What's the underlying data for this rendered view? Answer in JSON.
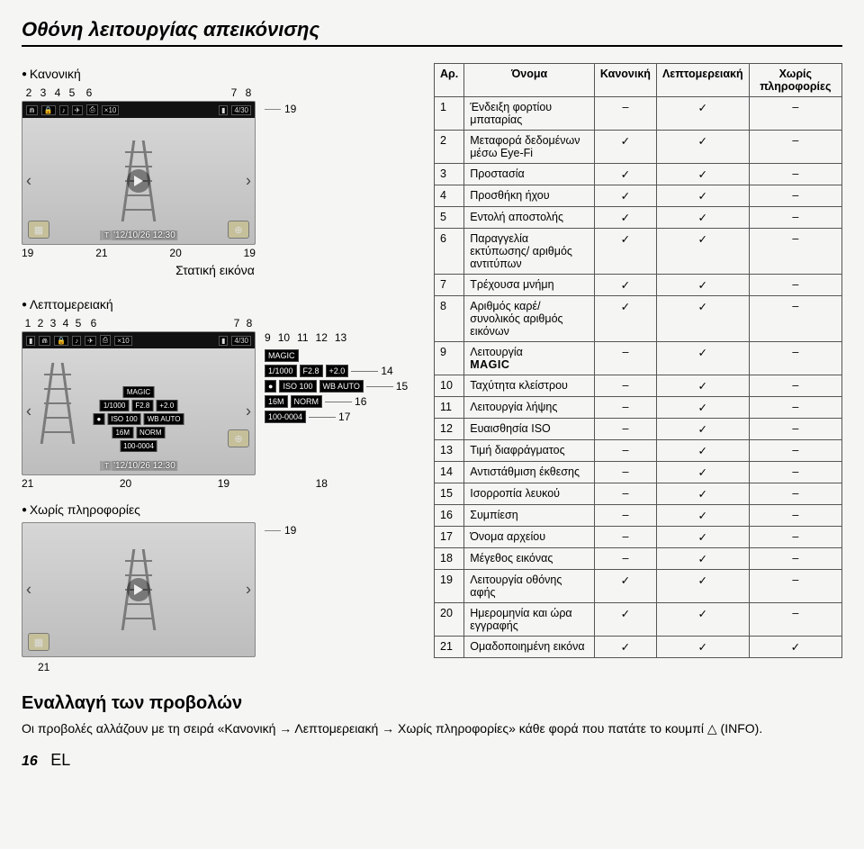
{
  "page": {
    "title": "Οθόνη λειτουργίας απεικόνισης",
    "switch_views_title": "Εναλλαγή των προβολών",
    "switch_views_text": "Οι προβολές αλλάζουν με τη σειρά «Κανονική → Λεπτομερειακή → Χωρίς πληροφορίες» κάθε φορά που πατάτε το κουμπί △ (INFO).",
    "page_number": "16",
    "lang": "EL"
  },
  "sections": {
    "normal": "Κανονική",
    "detailed": "Λεπτομερειακή",
    "noinfo": "Χωρίς πληροφορίες",
    "still_image": "Στατική εικόνα"
  },
  "callout_numbers": {
    "top_left_group": [
      "2",
      "3",
      "4",
      "5",
      "6"
    ],
    "top_right_group": [
      "7",
      "8"
    ],
    "detail_top_left": [
      "1",
      "2",
      "3",
      "4",
      "5",
      "6"
    ],
    "detail_top_right": [
      "7",
      "8"
    ],
    "detail_side_top": [
      "9",
      "10",
      "11",
      "12",
      "13"
    ],
    "detail_side_right": [
      "14",
      "15",
      "16",
      "17"
    ],
    "below_normal": [
      "19",
      "21",
      "20",
      "19"
    ],
    "below_detail": [
      "21",
      "20",
      "19",
      "18"
    ],
    "leader_19": "19",
    "leader_21": "21"
  },
  "osd": {
    "x10": "×10",
    "frame": "4/30",
    "date": "'12/10/26 12:30",
    "magic": "MAGIC",
    "shutter": "1/1000",
    "fnum": "F2.8",
    "ev": "+2.0",
    "iso_lbl": "ISO",
    "iso_val": "100",
    "wb_lbl": "WB",
    "wb_val": "AUTO",
    "size": "16M",
    "norm": "NORM",
    "file": "100-0004"
  },
  "table": {
    "headers": {
      "num": "Αρ.",
      "name": "Όνομα",
      "normal": "Κανονική",
      "detailed": "Λεπτομερειακή",
      "noinfo": "Χωρίς πληροφορίες"
    },
    "rows": [
      {
        "n": "1",
        "name": "Ένδειξη φορτίου μπαταρίας",
        "a": "–",
        "b": "✓",
        "c": "–"
      },
      {
        "n": "2",
        "name": "Μεταφορά δεδομένων μέσω Eye-Fi",
        "a": "✓",
        "b": "✓",
        "c": "–"
      },
      {
        "n": "3",
        "name": "Προστασία",
        "a": "✓",
        "b": "✓",
        "c": "–"
      },
      {
        "n": "4",
        "name": "Προσθήκη ήχου",
        "a": "✓",
        "b": "✓",
        "c": "–"
      },
      {
        "n": "5",
        "name": "Εντολή αποστολής",
        "a": "✓",
        "b": "✓",
        "c": "–"
      },
      {
        "n": "6",
        "name": "Παραγγελία εκτύπωσης/ αριθμός αντιτύπων",
        "a": "✓",
        "b": "✓",
        "c": "–"
      },
      {
        "n": "7",
        "name": "Τρέχουσα μνήμη",
        "a": "✓",
        "b": "✓",
        "c": "–"
      },
      {
        "n": "8",
        "name": "Αριθμός καρέ/ συνολικός αριθμός εικόνων",
        "a": "✓",
        "b": "✓",
        "c": "–"
      },
      {
        "n": "9",
        "name": "Λειτουργία MAGIC",
        "a": "–",
        "b": "✓",
        "c": "–",
        "magic": true
      },
      {
        "n": "10",
        "name": "Ταχύτητα κλείστρου",
        "a": "–",
        "b": "✓",
        "c": "–"
      },
      {
        "n": "11",
        "name": "Λειτουργία λήψης",
        "a": "–",
        "b": "✓",
        "c": "–"
      },
      {
        "n": "12",
        "name": "Ευαισθησία ISO",
        "a": "–",
        "b": "✓",
        "c": "–"
      },
      {
        "n": "13",
        "name": "Τιμή διαφράγματος",
        "a": "–",
        "b": "✓",
        "c": "–"
      },
      {
        "n": "14",
        "name": "Αντιστάθμιση έκθεσης",
        "a": "–",
        "b": "✓",
        "c": "–"
      },
      {
        "n": "15",
        "name": "Ισορροπία λευκού",
        "a": "–",
        "b": "✓",
        "c": "–"
      },
      {
        "n": "16",
        "name": "Συμπίεση",
        "a": "–",
        "b": "✓",
        "c": "–"
      },
      {
        "n": "17",
        "name": "Όνομα αρχείου",
        "a": "–",
        "b": "✓",
        "c": "–"
      },
      {
        "n": "18",
        "name": "Μέγεθος εικόνας",
        "a": "–",
        "b": "✓",
        "c": "–"
      },
      {
        "n": "19",
        "name": "Λειτουργία οθόνης αφής",
        "a": "✓",
        "b": "✓",
        "c": "–"
      },
      {
        "n": "20",
        "name": "Ημερομηνία και ώρα εγγραφής",
        "a": "✓",
        "b": "✓",
        "c": "–"
      },
      {
        "n": "21",
        "name": "Ομαδοποιημένη εικόνα",
        "a": "✓",
        "b": "✓",
        "c": "✓"
      }
    ]
  }
}
